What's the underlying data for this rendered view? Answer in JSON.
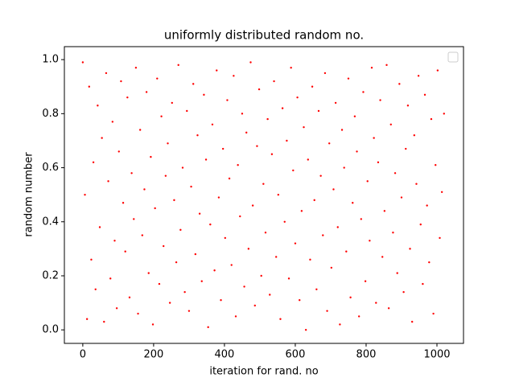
{
  "chart_data": {
    "type": "scatter",
    "title": "uniformly distributed random no.",
    "x_label": "iteration for rand. no",
    "y_label": "random number",
    "legend": "upper right",
    "series": [
      {
        "color": "#ff0000",
        "x": [
          0,
          6,
          12,
          18,
          24,
          30,
          36,
          42,
          48,
          54,
          60,
          66,
          72,
          78,
          84,
          90,
          96,
          102,
          108,
          114,
          120,
          126,
          132,
          138,
          144,
          150,
          156,
          162,
          168,
          174,
          180,
          186,
          192,
          198,
          204,
          210,
          216,
          222,
          228,
          234,
          240,
          246,
          252,
          258,
          264,
          270,
          276,
          282,
          288,
          294,
          300,
          306,
          312,
          318,
          324,
          330,
          336,
          342,
          348,
          354,
          360,
          366,
          372,
          378,
          384,
          390,
          396,
          402,
          408,
          414,
          420,
          426,
          432,
          438,
          444,
          450,
          456,
          462,
          468,
          474,
          480,
          486,
          492,
          498,
          504,
          510,
          516,
          522,
          528,
          534,
          540,
          546,
          552,
          558,
          564,
          570,
          576,
          582,
          588,
          594,
          600,
          606,
          612,
          618,
          624,
          630,
          636,
          642,
          648,
          654,
          660,
          666,
          672,
          678,
          684,
          690,
          696,
          702,
          708,
          714,
          720,
          726,
          732,
          738,
          744,
          750,
          756,
          762,
          768,
          774,
          780,
          786,
          792,
          798,
          804,
          810,
          816,
          822,
          828,
          834,
          840,
          846,
          852,
          858,
          864,
          870,
          876,
          882,
          888,
          894,
          900,
          906,
          912,
          918,
          924,
          930,
          936,
          942,
          948,
          954,
          960,
          966,
          972,
          978,
          984,
          990,
          996,
          1002,
          1008,
          1014,
          1020
        ],
        "values": [
          0.99,
          0.5,
          0.04,
          0.9,
          0.26,
          0.62,
          0.15,
          0.83,
          0.38,
          0.71,
          0.03,
          0.95,
          0.55,
          0.19,
          0.77,
          0.33,
          0.08,
          0.66,
          0.92,
          0.47,
          0.29,
          0.86,
          0.12,
          0.58,
          0.41,
          0.97,
          0.06,
          0.74,
          0.35,
          0.52,
          0.88,
          0.21,
          0.64,
          0.02,
          0.45,
          0.93,
          0.17,
          0.79,
          0.31,
          0.57,
          0.69,
          0.1,
          0.84,
          0.48,
          0.25,
          0.98,
          0.37,
          0.6,
          0.14,
          0.81,
          0.07,
          0.53,
          0.91,
          0.28,
          0.72,
          0.43,
          0.18,
          0.87,
          0.63,
          0.01,
          0.39,
          0.76,
          0.22,
          0.96,
          0.49,
          0.11,
          0.67,
          0.34,
          0.85,
          0.56,
          0.24,
          0.94,
          0.05,
          0.61,
          0.42,
          0.8,
          0.16,
          0.73,
          0.3,
          0.99,
          0.46,
          0.09,
          0.68,
          0.89,
          0.2,
          0.54,
          0.36,
          0.78,
          0.13,
          0.65,
          0.92,
          0.27,
          0.5,
          0.04,
          0.82,
          0.4,
          0.7,
          0.19,
          0.97,
          0.59,
          0.32,
          0.86,
          0.11,
          0.44,
          0.75,
          0.0,
          0.63,
          0.26,
          0.9,
          0.48,
          0.15,
          0.81,
          0.57,
          0.35,
          0.95,
          0.07,
          0.69,
          0.23,
          0.52,
          0.84,
          0.38,
          0.02,
          0.74,
          0.6,
          0.29,
          0.93,
          0.12,
          0.47,
          0.79,
          0.66,
          0.05,
          0.41,
          0.88,
          0.18,
          0.55,
          0.33,
          0.97,
          0.71,
          0.1,
          0.62,
          0.85,
          0.27,
          0.44,
          0.98,
          0.08,
          0.76,
          0.36,
          0.58,
          0.21,
          0.91,
          0.49,
          0.14,
          0.67,
          0.83,
          0.3,
          0.03,
          0.72,
          0.54,
          0.94,
          0.39,
          0.17,
          0.87,
          0.46,
          0.25,
          0.78,
          0.06,
          0.61,
          0.96,
          0.34,
          0.51,
          0.8
        ]
      }
    ],
    "xlim": [
      -52,
      1075
    ],
    "xticks": [
      0,
      200,
      400,
      600,
      800,
      1000
    ],
    "ylim": [
      -0.05,
      1.048
    ],
    "yticks": [
      {
        "value": 0,
        "label": "0.0"
      },
      {
        "value": 0.2,
        "label": "0.2"
      },
      {
        "value": 0.4,
        "label": "0.4"
      },
      {
        "value": 0.6,
        "label": "0.6"
      },
      {
        "value": 0.8,
        "label": "0.8"
      },
      {
        "value": 1,
        "label": "1.0"
      }
    ]
  }
}
